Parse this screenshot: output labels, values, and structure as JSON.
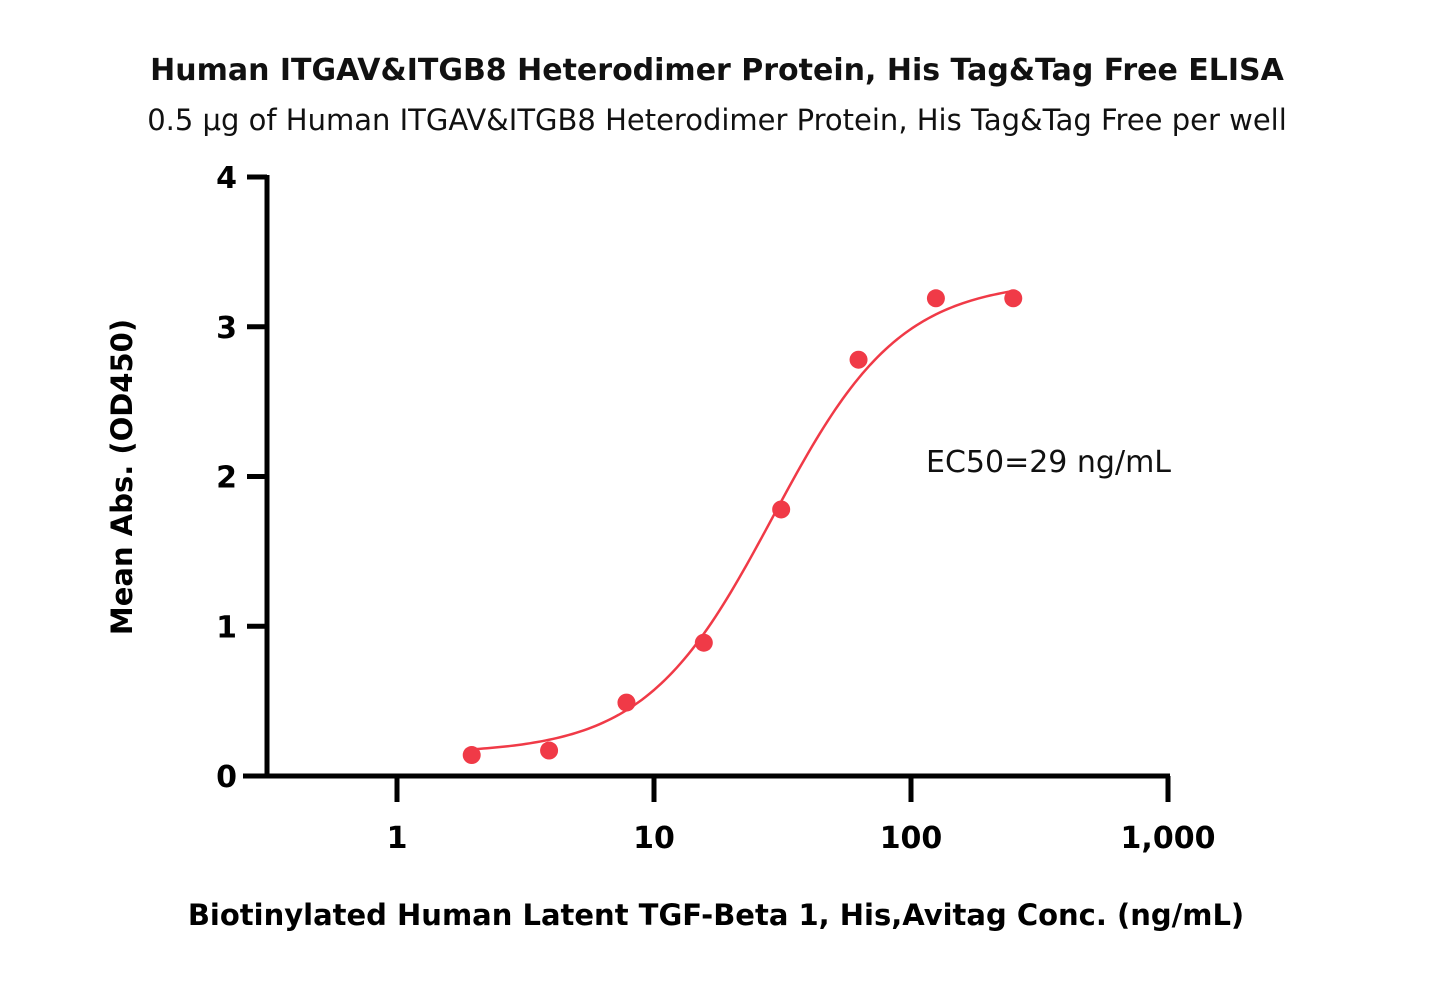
{
  "chart_data": {
    "type": "scatter",
    "title": "Human ITGAV&ITGB8 Heterodimer Protein, His Tag&Tag Free ELISA",
    "subtitle": "0.5 μg of Human ITGAV&ITGB8 Heterodimer Protein, His Tag&Tag Free per well",
    "xlabel": "Biotinylated Human Latent TGF-Beta 1, His,Avitag Conc. (ng/mL)",
    "ylabel": "Mean Abs. (OD450)",
    "x_scale": "log",
    "xlim": [
      0.3,
      1000
    ],
    "ylim": [
      0,
      4
    ],
    "x_ticks": [
      1,
      10,
      100,
      1000
    ],
    "x_tick_labels": [
      "1",
      "10",
      "100",
      "1,000"
    ],
    "y_ticks": [
      0,
      1,
      2,
      3,
      4
    ],
    "y_tick_labels": [
      "0",
      "1",
      "2",
      "3",
      "4"
    ],
    "grid": false,
    "color": "#f03a47",
    "series": [
      {
        "x": [
          1.953,
          3.906,
          7.813,
          15.625,
          31.25,
          62.5,
          125,
          250
        ],
        "y": [
          0.14,
          0.17,
          0.49,
          0.89,
          1.78,
          2.78,
          3.19,
          3.19
        ]
      }
    ],
    "fit": {
      "model": "4PL",
      "bottom": 0.15,
      "top": 3.31,
      "ec50": 29,
      "hill": 1.75
    },
    "annotations": [
      {
        "text": "EC50=29 ng/mL"
      }
    ]
  }
}
